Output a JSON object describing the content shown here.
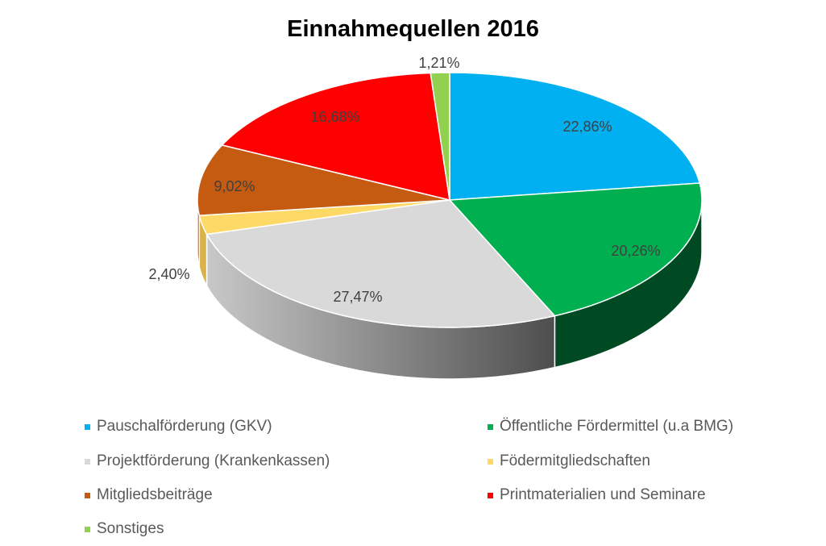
{
  "chart_data": {
    "type": "pie",
    "title": "Einnahmequellen 2016",
    "categories": [
      "Pauschalförderung (GKV)",
      "Öffentliche Fördermittel (u.a BMG)",
      "Projektförderung (Krankenkassen)",
      "Fördermitgliedschaften",
      "Mitgliedsbeiträge",
      "Printmaterialien und Seminare",
      "Sonstiges"
    ],
    "legend_labels": [
      "Pauschalförderung (GKV)",
      "Öffentliche Fördermittel (u.a BMG)",
      "Projektförderung (Krankenkassen)",
      "Födermitgliedschaften",
      "Mitgliedsbeiträge",
      "Printmaterialien und Seminare",
      "Sonstiges"
    ],
    "values": [
      22.86,
      20.26,
      27.47,
      2.4,
      9.02,
      16.68,
      1.21
    ],
    "data_labels": [
      "22,86%",
      "20,26%",
      "27,47%",
      "2,40%",
      "9,02%",
      "16,68%",
      "1,21%"
    ],
    "colors": [
      "#00B0F0",
      "#00B050",
      "#D9D9D9",
      "#FFD966",
      "#C55A11",
      "#FF0000",
      "#92D050"
    ],
    "side_colors": [
      "#0080B0",
      "#004A23",
      "#8A8A8A",
      "#D9B24A",
      "#8E3F0B",
      "#B00000",
      "#6A9A3A"
    ],
    "legend_placement": "bottom",
    "style": "3d"
  }
}
